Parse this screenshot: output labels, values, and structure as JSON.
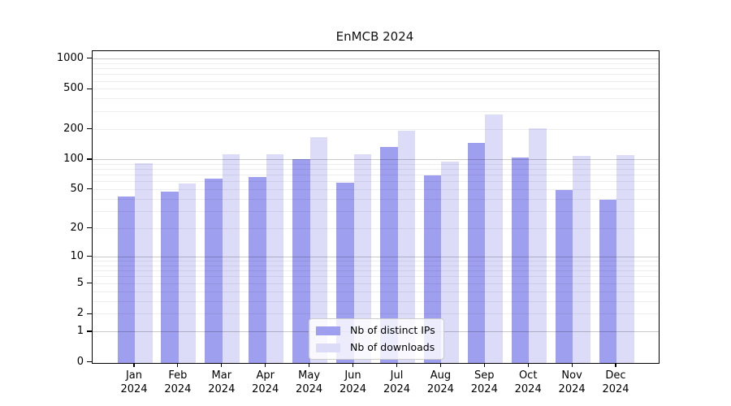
{
  "chart_data": {
    "type": "bar",
    "title": "EnMCB 2024",
    "year_label": "2024",
    "months": [
      "Jan",
      "Feb",
      "Mar",
      "Apr",
      "May",
      "Jun",
      "Jul",
      "Aug",
      "Sep",
      "Oct",
      "Nov",
      "Dec"
    ],
    "categories": [
      "Jan 2024",
      "Feb 2024",
      "Mar 2024",
      "Apr 2024",
      "May 2024",
      "Jun 2024",
      "Jul 2024",
      "Aug 2024",
      "Sep 2024",
      "Oct 2024",
      "Nov 2024",
      "Dec 2024"
    ],
    "series": [
      {
        "name": "Nb of distinct IPs",
        "color": "#9f9ff0",
        "values": [
          43,
          48,
          65,
          67,
          101,
          59,
          136,
          70,
          148,
          105,
          50,
          40
        ]
      },
      {
        "name": "Nb of downloads",
        "color": "#dcdcf8",
        "values": [
          92,
          58,
          115,
          113,
          169,
          115,
          197,
          96,
          284,
          208,
          110,
          112
        ]
      }
    ],
    "y_axis": {
      "scale": "log1p",
      "tick_values": [
        0,
        1,
        2,
        5,
        10,
        20,
        50,
        100,
        200,
        500,
        1000
      ],
      "major_gridlines": [
        1,
        10,
        100,
        1000
      ],
      "minor_gridlines": [
        2,
        3,
        4,
        5,
        6,
        7,
        8,
        9,
        20,
        30,
        40,
        50,
        60,
        70,
        80,
        90,
        200,
        300,
        400,
        500,
        600,
        700,
        800,
        900
      ],
      "ylim": [
        0,
        1200
      ]
    },
    "legend": {
      "position": "lower-center"
    },
    "grid": true
  }
}
